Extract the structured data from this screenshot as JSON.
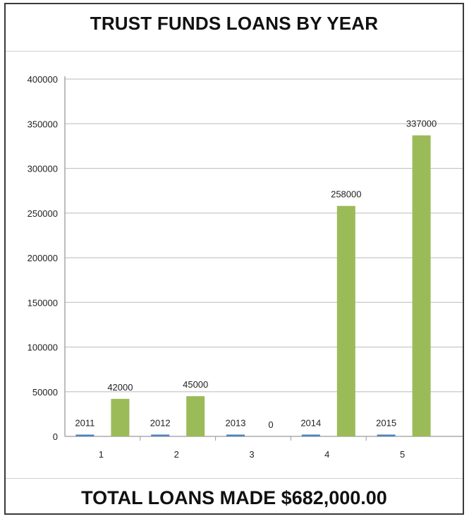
{
  "title": "TRUST FUNDS LOANS BY YEAR",
  "footer": "TOTAL LOANS MADE $682,000.00",
  "chart_data": {
    "type": "bar",
    "categories": [
      "1",
      "2",
      "3",
      "4",
      "5"
    ],
    "series": [
      {
        "color": "#4f81bd",
        "values": [
          2011,
          2012,
          2013,
          2014,
          2015
        ]
      },
      {
        "color": "#9bbb59",
        "values": [
          42000,
          45000,
          0,
          258000,
          337000
        ]
      }
    ],
    "ylim": [
      0,
      400000
    ],
    "yticks": [
      0,
      50000,
      100000,
      150000,
      200000,
      250000,
      300000,
      350000,
      400000
    ],
    "grid": true
  }
}
